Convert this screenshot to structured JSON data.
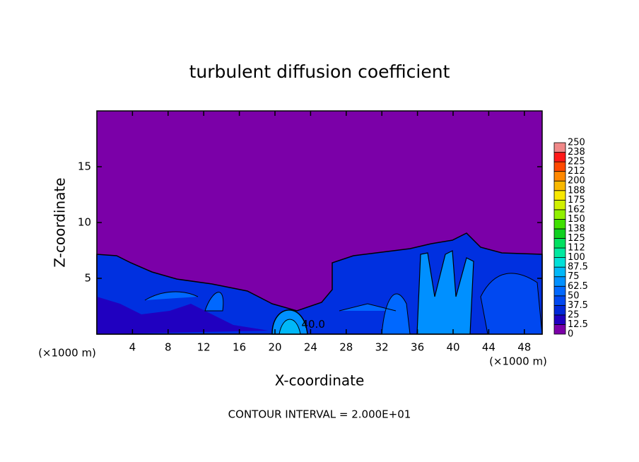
{
  "chart_data": {
    "type": "contour",
    "title": "turbulent diffusion coefficient",
    "x_label": "X-coordinate",
    "y_label": "Z-coordinate",
    "x_unit": "(×1000 m)",
    "footer": "CONTOUR INTERVAL = 2.000E+01",
    "xlim": [
      0,
      50
    ],
    "xticks": [
      4,
      8,
      12,
      16,
      20,
      24,
      28,
      32,
      36,
      40,
      44,
      48
    ],
    "ylim": [
      0,
      20
    ],
    "yticks": [
      5,
      10,
      15
    ],
    "annotations": [
      {
        "text": "40.0",
        "x": 24.3,
        "y": 0.4
      }
    ],
    "colorbar": {
      "levels": [
        0,
        12.5,
        25,
        37.5,
        50,
        62.5,
        75,
        87.5,
        100,
        {
          "value": 112.5,
          "label": "112"
        },
        125,
        {
          "value": 137.5,
          "label": "138"
        },
        150,
        {
          "value": 162.5,
          "label": "162"
        },
        175,
        {
          "value": 187.5,
          "label": "188"
        },
        200,
        {
          "value": 212.5,
          "label": "212"
        },
        225,
        {
          "value": 237.5,
          "label": "238"
        },
        250
      ],
      "colors": [
        "#7b00a8",
        "#2000c0",
        "#0028d8",
        "#0048f0",
        "#0068ff",
        "#0090ff",
        "#00b8f8",
        "#00e0d8",
        "#00e8a0",
        "#00e060",
        "#10d020",
        "#40e000",
        "#90f000",
        "#d0f000",
        "#f8e800",
        "#f8b800",
        "#ff8800",
        "#ff4800",
        "#ff1818",
        "#f08888"
      ]
    }
  }
}
